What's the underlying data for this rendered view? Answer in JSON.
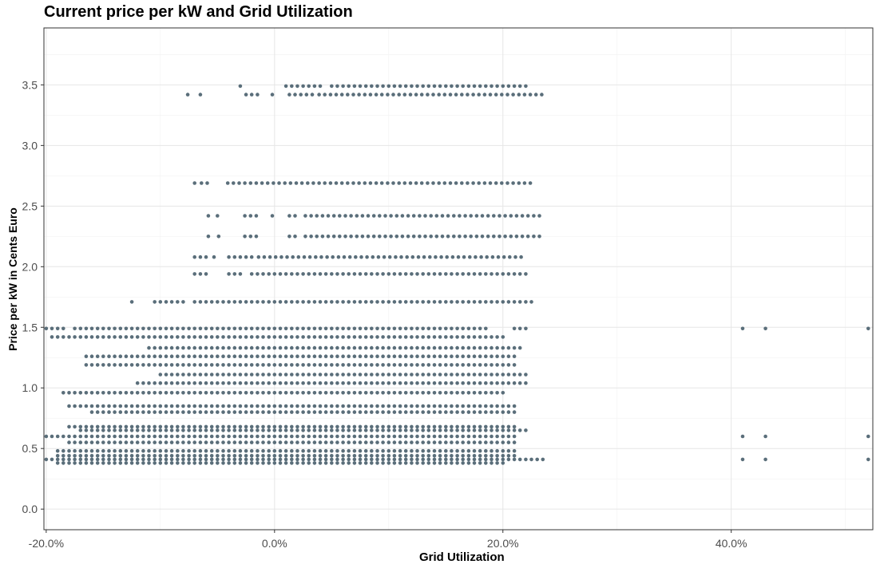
{
  "chart_data": {
    "type": "scatter",
    "title": "Current price per kW and Grid Utilization",
    "xlabel": "Grid Utilization",
    "ylabel": "Price per kW in Cents Euro",
    "xlim": [
      -20.2,
      52.4
    ],
    "ylim": [
      -0.17,
      3.97
    ],
    "x_ticks": [
      -20,
      0,
      20,
      40
    ],
    "x_tick_labels": [
      "-20.0%",
      "0.0%",
      "20.0%",
      "40.0%"
    ],
    "y_ticks": [
      0,
      0.5,
      1,
      1.5,
      2,
      2.5,
      3,
      3.5
    ],
    "y_tick_labels": [
      "0.0",
      "0.5",
      "1.0",
      "1.5",
      "2.0",
      "2.5",
      "3.0",
      "3.5"
    ],
    "grid": true,
    "point_color": "#5a6e7a",
    "bands": [
      {
        "y": 3.49,
        "segments": [
          [
            -3,
            -3
          ],
          [
            1,
            4
          ],
          [
            5,
            22
          ]
        ]
      },
      {
        "y": 3.42,
        "segments": [
          [
            -7.6,
            -7.6
          ],
          [
            -6.5,
            -6.2
          ],
          [
            -2.5,
            -1.5
          ],
          [
            -0.2,
            -0.2
          ],
          [
            1.3,
            3.5
          ],
          [
            3.9,
            23.5
          ]
        ]
      },
      {
        "y": 2.69,
        "segments": [
          [
            -7,
            -7
          ],
          [
            -6.4,
            -5.6
          ],
          [
            -4.1,
            22.5
          ]
        ]
      },
      {
        "y": 2.42,
        "segments": [
          [
            -5.8,
            -5.8
          ],
          [
            -5,
            -4.6
          ],
          [
            -2.6,
            -1.4
          ],
          [
            -0.2,
            -0.2
          ],
          [
            1.3,
            2.2
          ],
          [
            2.7,
            23.5
          ]
        ]
      },
      {
        "y": 2.25,
        "segments": [
          [
            -5.8,
            -5.8
          ],
          [
            -4.9,
            -4.6
          ],
          [
            -2.6,
            -1.5
          ],
          [
            1.3,
            2.2
          ],
          [
            2.7,
            23.5
          ]
        ]
      },
      {
        "y": 2.08,
        "segments": [
          [
            -7,
            -6
          ],
          [
            -5.3,
            -5.3
          ],
          [
            -4,
            -2
          ],
          [
            -1.4,
            22
          ]
        ]
      },
      {
        "y": 1.94,
        "segments": [
          [
            -7,
            -6
          ],
          [
            -4,
            -3
          ],
          [
            -2,
            22
          ]
        ]
      },
      {
        "y": 1.71,
        "segments": [
          [
            -12.5,
            -12.5
          ],
          [
            -10.5,
            -8
          ],
          [
            -7,
            22.5
          ]
        ]
      },
      {
        "y": 1.49,
        "segments": [
          [
            -20,
            -18.5
          ],
          [
            -17.5,
            18.5
          ],
          [
            21,
            22
          ],
          [
            41,
            41
          ],
          [
            43,
            43
          ],
          [
            52,
            52
          ]
        ]
      },
      {
        "y": 1.42,
        "segments": [
          [
            -19.5,
            20
          ]
        ]
      },
      {
        "y": 1.33,
        "segments": [
          [
            -11,
            21.5
          ]
        ]
      },
      {
        "y": 1.26,
        "segments": [
          [
            -16.5,
            21
          ]
        ]
      },
      {
        "y": 1.19,
        "segments": [
          [
            -16.5,
            21
          ]
        ]
      },
      {
        "y": 1.11,
        "segments": [
          [
            -10,
            22
          ]
        ]
      },
      {
        "y": 1.04,
        "segments": [
          [
            -12,
            22
          ]
        ]
      },
      {
        "y": 0.96,
        "segments": [
          [
            -18.5,
            20
          ]
        ]
      },
      {
        "y": 0.85,
        "segments": [
          [
            -18,
            21
          ]
        ]
      },
      {
        "y": 0.8,
        "segments": [
          [
            -16,
            21
          ]
        ]
      },
      {
        "y": 0.68,
        "segments": [
          [
            -18,
            21
          ]
        ]
      },
      {
        "y": 0.65,
        "segments": [
          [
            -17,
            22
          ]
        ]
      },
      {
        "y": 0.6,
        "segments": [
          [
            -20,
            21
          ],
          [
            41,
            41
          ],
          [
            43,
            43
          ],
          [
            52,
            52
          ]
        ]
      },
      {
        "y": 0.55,
        "segments": [
          [
            -18,
            21
          ]
        ]
      },
      {
        "y": 0.48,
        "segments": [
          [
            -19,
            21
          ]
        ]
      },
      {
        "y": 0.44,
        "segments": [
          [
            -19,
            21
          ]
        ]
      },
      {
        "y": 0.41,
        "segments": [
          [
            -20,
            23.5
          ],
          [
            41,
            41
          ],
          [
            43,
            43
          ],
          [
            52,
            52
          ]
        ]
      },
      {
        "y": 0.38,
        "segments": [
          [
            -19,
            20
          ]
        ]
      }
    ]
  }
}
